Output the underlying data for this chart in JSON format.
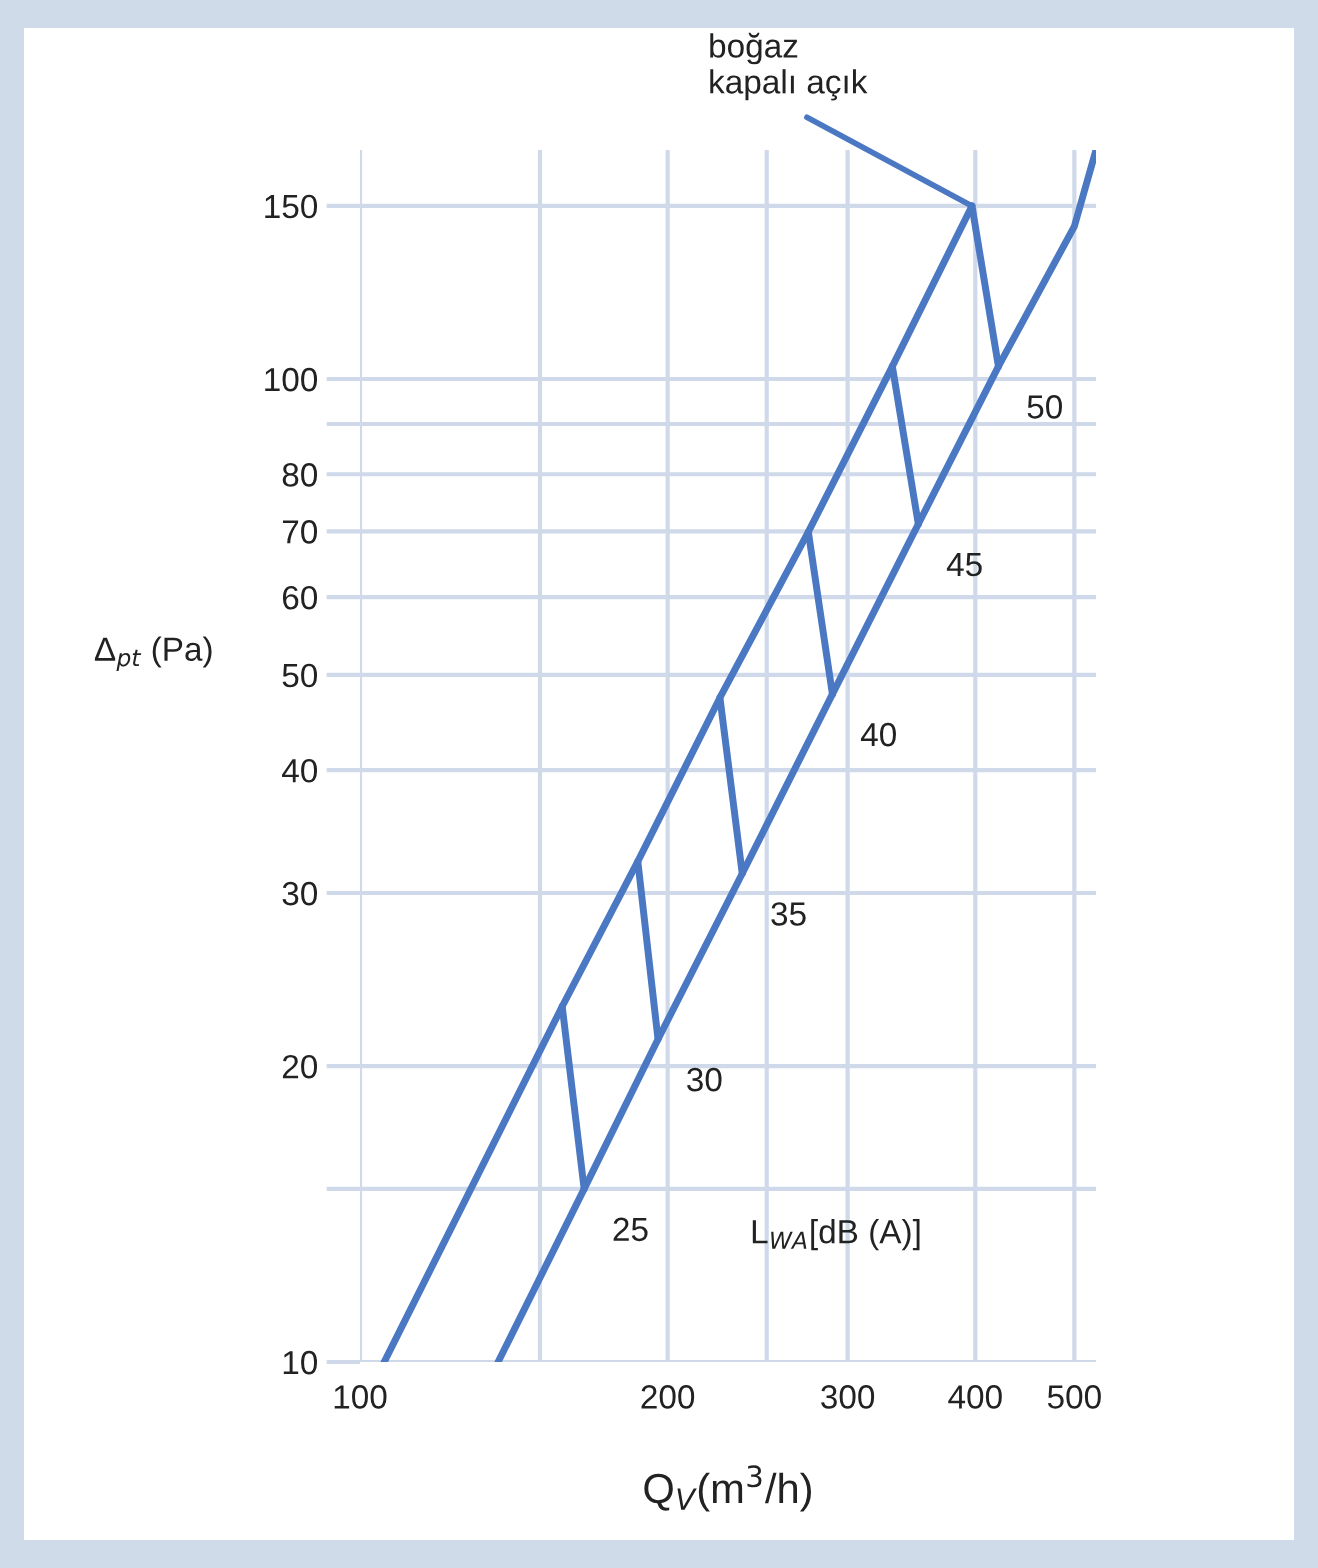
{
  "chart_data": {
    "type": "line",
    "xlabel": "Q$_{V}$(m$^{3}$/h)",
    "ylabel": "Δ$_{pt}$ (Pa)",
    "log": "xy",
    "xlim": [
      100,
      525
    ],
    "ylim": [
      10,
      171
    ],
    "xticks": [
      100,
      {
        "value": 150,
        "label": null
      },
      200,
      {
        "value": 250,
        "label": null
      },
      300,
      400,
      500
    ],
    "yticks": [
      10,
      {
        "value": 15,
        "label": null
      },
      20,
      30,
      40,
      50,
      60,
      70,
      80,
      {
        "value": 90,
        "label": null
      },
      100,
      150
    ],
    "grid": true,
    "marker": "none",
    "line_style": "solid",
    "series": [
      {
        "color": "#4a78c2",
        "x": [
          105.6,
          157.7,
          187,
          225,
          274.6,
          331.8,
          397
        ],
        "values": [
          10,
          23.0,
          32.3,
          47.4,
          69.9,
          103,
          150
        ]
      },
      {
        "color": "#4a78c2",
        "x": [
          136.5,
          165.7,
          195.7,
          236.6,
          289.9,
          351.8,
          421.4,
          500,
          525
        ],
        "values": [
          10,
          15,
          21.3,
          31.4,
          47.8,
          71.2,
          103,
          143,
          171
        ]
      },
      {
        "color": "#4a78c2",
        "x": [
          157.7,
          165.7
        ],
        "values": [
          23.0,
          15
        ]
      },
      {
        "color": "#4a78c2",
        "x": [
          187,
          195.7
        ],
        "values": [
          32.3,
          21.3
        ]
      },
      {
        "color": "#4a78c2",
        "x": [
          225,
          236.6
        ],
        "values": [
          47.4,
          31.4
        ]
      },
      {
        "color": "#4a78c2",
        "x": [
          274.6,
          289.9
        ],
        "values": [
          69.9,
          47.8
        ]
      },
      {
        "color": "#4a78c2",
        "x": [
          331.8,
          351.8
        ],
        "values": [
          103,
          71.2
        ]
      },
      {
        "color": "#4a78c2",
        "x": [
          397,
          421.4
        ],
        "values": [
          150,
          103
        ]
      }
    ],
    "annotations": [
      {
        "text": "25",
        "x": 165.7,
        "y": 15
      },
      {
        "text": "30",
        "x": 195.7,
        "y": 21.3
      },
      {
        "text": "35",
        "x": 236.6,
        "y": 31.4
      },
      {
        "text": "40",
        "x": 289.9,
        "y": 47.8
      },
      {
        "text": "45",
        "x": 351.8,
        "y": 71.2
      },
      {
        "text": "50",
        "x": 421.4,
        "y": 103
      },
      {
        "text": "boğaz\nkapalı açık",
        "x": 397,
        "y": 150
      },
      "L$_{WA}$[dB (A)]"
    ]
  }
}
